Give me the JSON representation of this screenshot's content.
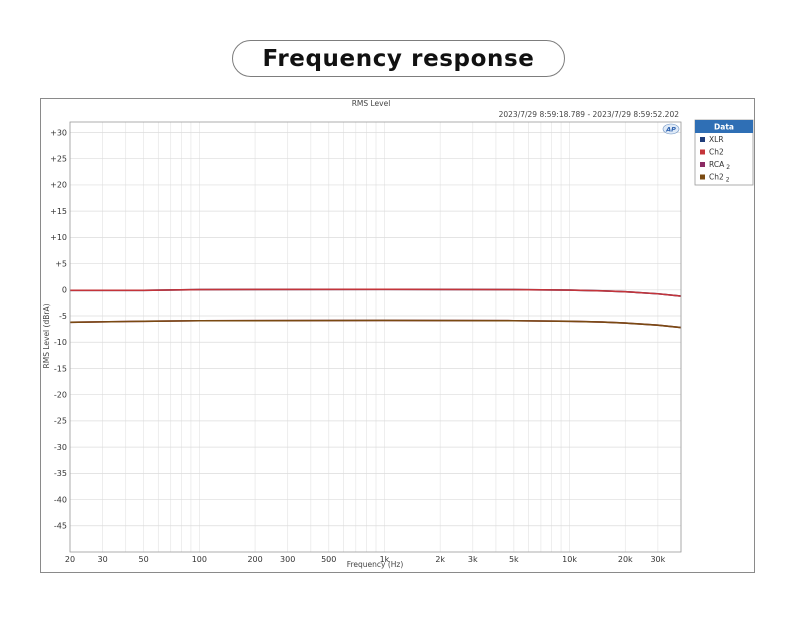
{
  "page_title": "Frequency response",
  "chart_data": {
    "type": "line",
    "title": "RMS Level",
    "subtitle": "2023/7/29 8:59:18.789 -   2023/7/29 8:59:52.202",
    "xlabel": "Frequency (Hz)",
    "ylabel": "RMS Level (dBrA)",
    "xscale": "log",
    "xlim": [
      20,
      40000
    ],
    "ylim": [
      -50,
      32
    ],
    "grid": true,
    "legend_position": "right",
    "legend_title": "Data",
    "badge": "AP",
    "x_ticks": [
      {
        "value": 20,
        "label": "20"
      },
      {
        "value": 30,
        "label": "30"
      },
      {
        "value": 50,
        "label": "50"
      },
      {
        "value": 100,
        "label": "100"
      },
      {
        "value": 200,
        "label": "200"
      },
      {
        "value": 300,
        "label": "300"
      },
      {
        "value": 500,
        "label": "500"
      },
      {
        "value": 1000,
        "label": "1k"
      },
      {
        "value": 2000,
        "label": "2k"
      },
      {
        "value": 3000,
        "label": "3k"
      },
      {
        "value": 5000,
        "label": "5k"
      },
      {
        "value": 10000,
        "label": "10k"
      },
      {
        "value": 20000,
        "label": "20k"
      },
      {
        "value": 30000,
        "label": "30k"
      }
    ],
    "y_ticks": [
      {
        "value": 30,
        "label": "+30"
      },
      {
        "value": 25,
        "label": "+25"
      },
      {
        "value": 20,
        "label": "+20"
      },
      {
        "value": 15,
        "label": "+15"
      },
      {
        "value": 10,
        "label": "+10"
      },
      {
        "value": 5,
        "label": "+5"
      },
      {
        "value": 0,
        "label": "0"
      },
      {
        "value": -5,
        "label": "-5"
      },
      {
        "value": -10,
        "label": "-10"
      },
      {
        "value": -15,
        "label": "-15"
      },
      {
        "value": -20,
        "label": "-20"
      },
      {
        "value": -25,
        "label": "-25"
      },
      {
        "value": -30,
        "label": "-30"
      },
      {
        "value": -35,
        "label": "-35"
      },
      {
        "value": -40,
        "label": "-40"
      },
      {
        "value": -45,
        "label": "-45"
      }
    ],
    "series": [
      {
        "name": "XLR",
        "legend_sub": "",
        "color": "#1f3d7a",
        "width": 1.6,
        "x": [
          20,
          50,
          100,
          1000,
          5000,
          10000,
          15000,
          20000,
          30000,
          40000
        ],
        "y": [
          -0.1,
          -0.1,
          0.05,
          0.1,
          0.05,
          -0.05,
          -0.2,
          -0.35,
          -0.75,
          -1.2
        ]
      },
      {
        "name": "Ch2",
        "legend_sub": "",
        "color": "#c4343a",
        "width": 1.6,
        "x": [
          20,
          50,
          100,
          1000,
          5000,
          10000,
          15000,
          20000,
          30000,
          40000
        ],
        "y": [
          -0.1,
          -0.1,
          0.05,
          0.1,
          0.05,
          -0.05,
          -0.2,
          -0.35,
          -0.75,
          -1.2
        ]
      },
      {
        "name": "RCA",
        "legend_sub": "2",
        "color": "#8b2a63",
        "width": 1.6,
        "x": [
          20,
          50,
          100,
          1000,
          5000,
          10000,
          15000,
          20000,
          30000,
          40000
        ],
        "y": [
          -6.2,
          -6.0,
          -5.9,
          -5.85,
          -5.9,
          -6.0,
          -6.15,
          -6.35,
          -6.75,
          -7.2
        ]
      },
      {
        "name": "Ch2",
        "legend_sub": "2",
        "color": "#7a4a12",
        "width": 1.6,
        "x": [
          20,
          50,
          100,
          1000,
          5000,
          10000,
          15000,
          20000,
          30000,
          40000
        ],
        "y": [
          -6.2,
          -6.0,
          -5.9,
          -5.85,
          -5.9,
          -6.0,
          -6.15,
          -6.35,
          -6.75,
          -7.2
        ]
      }
    ]
  }
}
